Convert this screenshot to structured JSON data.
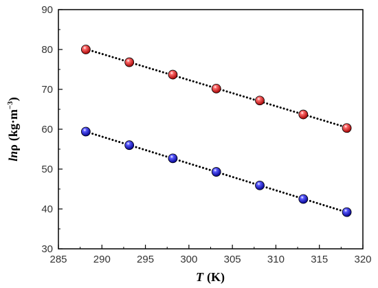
{
  "chart_data": {
    "type": "scatter",
    "title": "",
    "xlabel": {
      "symbol": "T",
      "unit": "(K)"
    },
    "ylabel": {
      "symbol": "ln",
      "variable": "ρ",
      "unit": "(kg·m",
      "exponent": "−3",
      "close": ")"
    },
    "xlim": [
      285,
      320
    ],
    "ylim": [
      30,
      90
    ],
    "xticks": [
      285,
      290,
      295,
      300,
      305,
      310,
      315,
      320
    ],
    "yticks": [
      30,
      40,
      50,
      60,
      70,
      80,
      90
    ],
    "grid": false,
    "legend": "none",
    "x": [
      288.15,
      293.15,
      298.15,
      303.15,
      308.15,
      313.15,
      318.15
    ],
    "series": [
      {
        "color": "#e01010",
        "values": [
          80.0,
          76.8,
          73.7,
          70.2,
          67.2,
          63.7,
          60.3
        ],
        "fit_line": "dotted"
      },
      {
        "color": "#1010d8",
        "values": [
          59.4,
          56.0,
          52.7,
          49.3,
          45.9,
          42.5,
          39.2
        ],
        "fit_line": "dotted"
      }
    ]
  }
}
